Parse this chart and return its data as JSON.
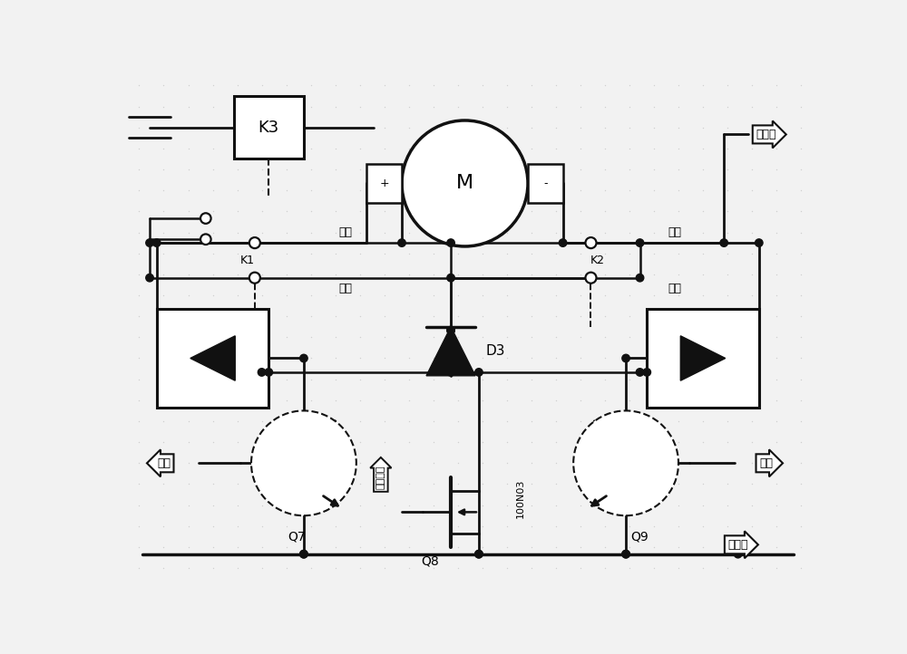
{
  "bg_color": "#f2f2f2",
  "line_color": "#111111",
  "labels": {
    "K3": "K3",
    "M": "M",
    "K1": "K1",
    "K2": "K2",
    "D3": "D3",
    "Q7": "Q7",
    "Q8": "Q8",
    "Q9": "Q9",
    "changbi_left": "常闭",
    "changkai_left": "常开",
    "changbi_right": "常闭",
    "changkai_right": "常开",
    "sudu": "速度控制",
    "n100N03": "100N03",
    "dianyuanzheng": "电源正",
    "dianyuanfu": "电源负",
    "houtui": "后退",
    "qianjin": "前进"
  },
  "grid_color": "#d0d0d0"
}
